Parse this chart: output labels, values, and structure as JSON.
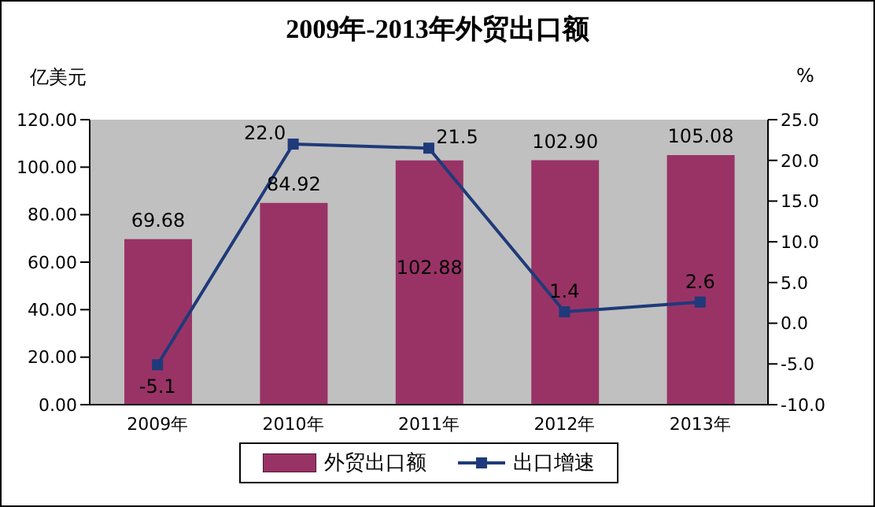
{
  "chart_data": {
    "type": "bar",
    "title": "2009年-2013年外贸出口额",
    "ylabel": "亿美元",
    "y2label": "%",
    "categories": [
      "2009年",
      "2010年",
      "2011年",
      "2012年",
      "2013年"
    ],
    "series": [
      {
        "name": "外贸出口额",
        "color": "#993366",
        "values": [
          69.68,
          84.92,
          102.88,
          102.9,
          105.08
        ],
        "value_labels": [
          "69.68",
          "84.92",
          "102.88",
          "102.90",
          "105.08"
        ]
      },
      {
        "name": "出口增速",
        "type": "line",
        "axis": "y2",
        "color": "#1f3a7a",
        "marker": "square",
        "values": [
          -5.1,
          22.0,
          21.5,
          1.4,
          2.6
        ],
        "value_labels": [
          "-5.1",
          "22.0",
          "21.5",
          "1.4",
          "2.6"
        ]
      }
    ],
    "ylim": [
      0,
      120
    ],
    "yticks": [
      {
        "value": 0,
        "label": "0.00"
      },
      {
        "value": 20,
        "label": "20.00"
      },
      {
        "value": 40,
        "label": "40.00"
      },
      {
        "value": 60,
        "label": "60.00"
      },
      {
        "value": 80,
        "label": "80.00"
      },
      {
        "value": 100,
        "label": "100.00"
      },
      {
        "value": 120,
        "label": "120.00"
      }
    ],
    "y2lim": [
      -10,
      25
    ],
    "y2ticks": [
      {
        "value": -10,
        "label": "-10.0"
      },
      {
        "value": -5,
        "label": "-5.0"
      },
      {
        "value": 0,
        "label": "0.0"
      },
      {
        "value": 5,
        "label": "5.0"
      },
      {
        "value": 10,
        "label": "10.0"
      },
      {
        "value": 15,
        "label": "15.0"
      },
      {
        "value": 20,
        "label": "20.0"
      },
      {
        "value": 25,
        "label": "25.0"
      }
    ],
    "grid": false,
    "legend": "bottom"
  }
}
